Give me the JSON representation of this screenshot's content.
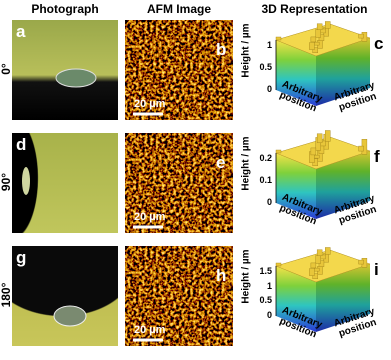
{
  "columns": [
    "Photograph",
    "AFM Image",
    "3D Representation"
  ],
  "rows": [
    {
      "angle": "0°",
      "panels": [
        "a",
        "b",
        "c"
      ],
      "scale_bar": "20 µm",
      "height_label": "Height / µm",
      "height_ticks": [
        0,
        0.5,
        1
      ],
      "x_position": "Arbitrary position",
      "y_position": "Arbitrary position"
    },
    {
      "angle": "90°",
      "panels": [
        "d",
        "e",
        "f"
      ],
      "scale_bar": "20 µm",
      "height_label": "Height / µm",
      "height_ticks": [
        0,
        0.1,
        0.2
      ],
      "x_position": "Arbitrary position",
      "y_position": "Arbitrary position"
    },
    {
      "angle": "180°",
      "panels": [
        "g",
        "h",
        "i"
      ],
      "scale_bar": "20 µm",
      "height_label": "Height / µm",
      "height_ticks": [
        0,
        0.5,
        1,
        1.5
      ],
      "x_position": "Arbitrary position",
      "y_position": "Arbitrary position"
    }
  ]
}
